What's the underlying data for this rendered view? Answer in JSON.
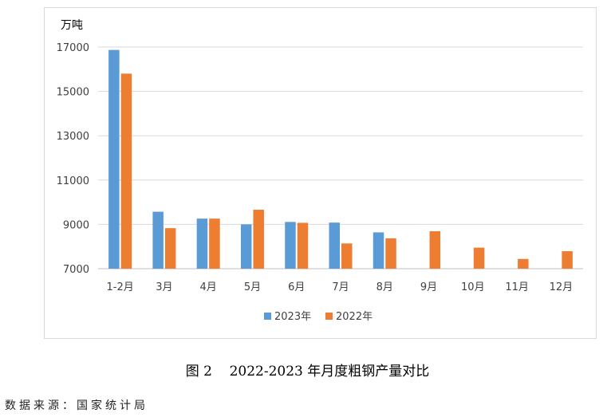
{
  "chart_data": {
    "type": "bar",
    "ylabel": "万吨",
    "ylim": [
      7000,
      17000
    ],
    "yticks": [
      "7000",
      "9000",
      "11000",
      "13000",
      "15000",
      "17000"
    ],
    "grid": true,
    "legend_position": "bottom",
    "categories": [
      "1-2月",
      "3月",
      "4月",
      "5月",
      "6月",
      "7月",
      "8月",
      "9月",
      "10月",
      "11月",
      "12月"
    ],
    "series": [
      {
        "name": "2023年",
        "color": "#5b9bd5",
        "values": [
          16870,
          9570,
          9260,
          9000,
          9110,
          9080,
          8640,
          null,
          null,
          null,
          null
        ]
      },
      {
        "name": "2022年",
        "color": "#ed7d31",
        "values": [
          15800,
          8830,
          9260,
          9660,
          9070,
          8140,
          8370,
          8690,
          7950,
          7440,
          7790
        ]
      }
    ]
  },
  "caption": "图 2    2022-2023 年月度粗钢产量对比",
  "source": "数据来源：国家统计局"
}
